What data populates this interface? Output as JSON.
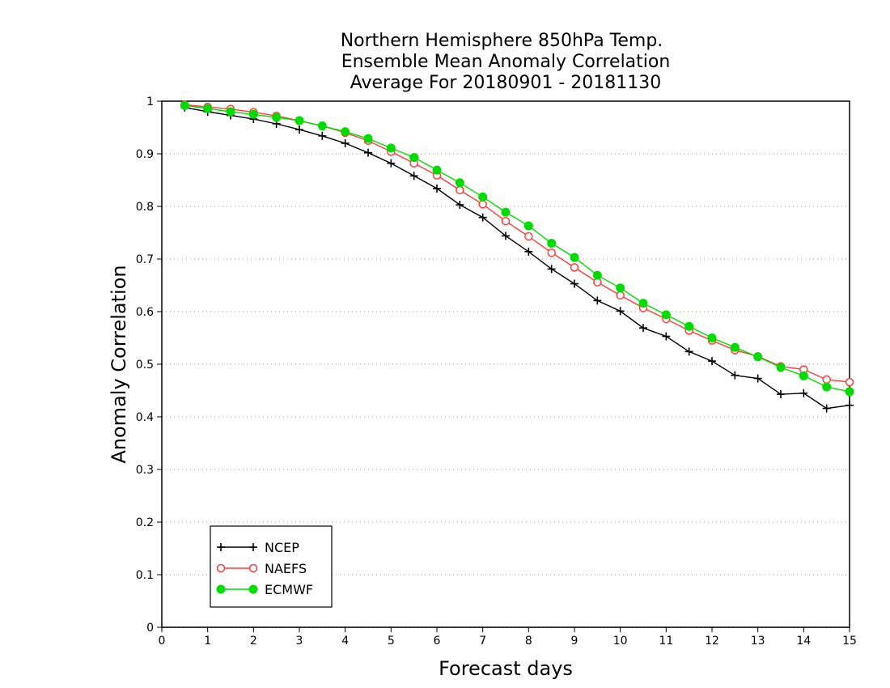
{
  "chart_data": {
    "type": "line",
    "title_lines": [
      "Northern Hemisphere 850hPa Temp.",
      "Ensemble Mean Anomaly Correlation",
      "Average For 20180901 - 20181130"
    ],
    "xlabel": "Forecast days",
    "ylabel": "Anomaly Correlation",
    "xlim": [
      0,
      15
    ],
    "ylim": [
      0,
      1
    ],
    "x_ticks": [
      0,
      1,
      2,
      3,
      4,
      5,
      6,
      7,
      8,
      9,
      10,
      11,
      12,
      13,
      14,
      15
    ],
    "x_tick_labels": [
      "0",
      "1",
      "2",
      "3",
      "4",
      "5",
      "6",
      "7",
      "8",
      "9",
      "10",
      "11",
      "12",
      "13",
      "14",
      "15"
    ],
    "y_ticks": [
      0,
      0.1,
      0.2,
      0.3,
      0.4,
      0.5,
      0.6,
      0.7,
      0.8,
      0.9,
      1
    ],
    "y_tick_labels": [
      "0",
      "0.1",
      "0.2",
      "0.3",
      "0.4",
      "0.5",
      "0.6",
      "0.7",
      "0.8",
      "0.9",
      "1"
    ],
    "grid": "horizontal dotted",
    "legend_position": "bottom-left",
    "x": [
      0.5,
      1,
      1.5,
      2,
      2.5,
      3,
      3.5,
      4,
      4.5,
      5,
      5.5,
      6,
      6.5,
      7,
      7.5,
      8,
      8.5,
      9,
      9.5,
      10,
      10.5,
      11,
      11.5,
      12,
      12.5,
      13,
      13.5,
      14,
      14.5,
      15
    ],
    "series": [
      {
        "name": "NCEP",
        "color": "#000000",
        "marker": "plus",
        "values": [
          0.988,
          0.98,
          0.973,
          0.966,
          0.957,
          0.946,
          0.934,
          0.92,
          0.902,
          0.882,
          0.858,
          0.834,
          0.803,
          0.779,
          0.744,
          0.714,
          0.681,
          0.653,
          0.621,
          0.601,
          0.569,
          0.553,
          0.524,
          0.506,
          0.479,
          0.473,
          0.443,
          0.445,
          0.416,
          0.422
        ]
      },
      {
        "name": "NAEFS",
        "color": "#ff3c3c",
        "marker": "open-circle",
        "values": [
          0.993,
          0.989,
          0.985,
          0.979,
          0.972,
          0.963,
          0.953,
          0.94,
          0.925,
          0.904,
          0.882,
          0.859,
          0.831,
          0.804,
          0.772,
          0.743,
          0.712,
          0.684,
          0.656,
          0.631,
          0.607,
          0.586,
          0.564,
          0.545,
          0.527,
          0.515,
          0.496,
          0.49,
          0.471,
          0.466
        ]
      },
      {
        "name": "ECMWF",
        "color": "#00dc00",
        "marker": "filled-circle",
        "values": [
          0.992,
          0.986,
          0.98,
          0.975,
          0.969,
          0.963,
          0.953,
          0.942,
          0.929,
          0.911,
          0.893,
          0.869,
          0.845,
          0.818,
          0.789,
          0.763,
          0.73,
          0.703,
          0.669,
          0.645,
          0.616,
          0.594,
          0.572,
          0.55,
          0.532,
          0.514,
          0.494,
          0.478,
          0.457,
          0.448
        ]
      }
    ]
  }
}
